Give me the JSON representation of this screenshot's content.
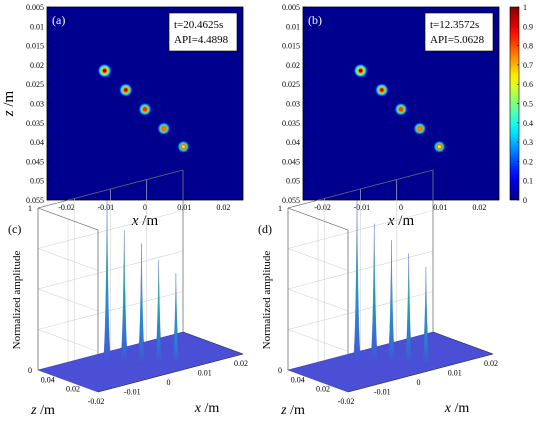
{
  "chart_data": [
    {
      "type": "heatmap",
      "panel_label": "(a)",
      "info_lines": [
        "t=20.4625s",
        "API=4.4898"
      ],
      "xlabel": "x /m",
      "ylabel": "z /m",
      "xlim": [
        -0.025,
        0.025
      ],
      "ylim": [
        0.005,
        0.055
      ],
      "y_reversed": true,
      "x_ticks": [
        -0.02,
        -0.01,
        0,
        0.01,
        0.02
      ],
      "x_tick_labels": [
        "-0.02",
        "-0.01",
        "0",
        "0.01",
        "0.02"
      ],
      "y_ticks": [
        0.005,
        0.01,
        0.015,
        0.02,
        0.025,
        0.03,
        0.035,
        0.04,
        0.045,
        0.05,
        0.055
      ],
      "y_tick_labels": [
        "0.005",
        "0.01",
        "0.015",
        "0.02",
        "0.025",
        "0.03",
        "0.035",
        "0.04",
        "0.045",
        "0.05",
        "0.055"
      ],
      "foci": [
        {
          "x": -0.0103,
          "z": 0.0215,
          "amplitude": 1.0
        },
        {
          "x": -0.0049,
          "z": 0.0265,
          "amplitude": 0.87
        },
        {
          "x": 0.0,
          "z": 0.0315,
          "amplitude": 0.78
        },
        {
          "x": 0.0048,
          "z": 0.0365,
          "amplitude": 0.7
        },
        {
          "x": 0.0098,
          "z": 0.0412,
          "amplitude": 0.6
        }
      ]
    },
    {
      "type": "heatmap",
      "panel_label": "(b)",
      "info_lines": [
        "t=12.3572s",
        "API=5.0628"
      ],
      "xlabel": "x /m",
      "ylabel": "",
      "xlim": [
        -0.025,
        0.025
      ],
      "ylim": [
        0.005,
        0.055
      ],
      "y_reversed": true,
      "x_ticks": [
        -0.02,
        -0.01,
        0,
        0.01,
        0.02
      ],
      "x_tick_labels": [
        "-0.02",
        "-0.01",
        "0",
        "0.01",
        "0.02"
      ],
      "y_ticks": [
        0.005,
        0.01,
        0.015,
        0.02,
        0.025,
        0.03,
        0.035,
        0.04,
        0.045,
        0.05,
        0.055
      ],
      "y_tick_labels": [
        "0.005",
        "0.01",
        "0.015",
        "0.02",
        "0.025",
        "0.03",
        "0.035",
        "0.04",
        "0.045",
        "0.05",
        "0.055"
      ],
      "foci": [
        {
          "x": -0.0103,
          "z": 0.0215,
          "amplitude": 1.0
        },
        {
          "x": -0.0049,
          "z": 0.0265,
          "amplitude": 0.86
        },
        {
          "x": 0.0,
          "z": 0.0315,
          "amplitude": 0.76
        },
        {
          "x": 0.0048,
          "z": 0.0365,
          "amplitude": 0.68
        },
        {
          "x": 0.0098,
          "z": 0.0412,
          "amplitude": 0.58
        }
      ]
    },
    {
      "type": "surface",
      "panel_label": "(c)",
      "xlabel": "x /m",
      "ylabel": "z /m",
      "zlabel": "Normalized amplitude",
      "x_tick_labels": [
        "-0.02",
        "-0.01",
        "0",
        "0.01",
        "0.02"
      ],
      "y_tick_labels": [
        "0.04",
        "0.02"
      ],
      "z_tick_labels": [
        "0",
        "1"
      ],
      "zlim": [
        0,
        1
      ],
      "peaks": [
        1.0,
        0.82,
        0.74,
        0.64,
        0.56
      ]
    },
    {
      "type": "surface",
      "panel_label": "(d)",
      "xlabel": "x /m",
      "ylabel": "z /m",
      "zlabel": "Normalized amplitude",
      "x_tick_labels": [
        "-0.02",
        "-0.01",
        "0",
        "0.01",
        "0.02"
      ],
      "y_tick_labels": [
        "0.04",
        "0.02"
      ],
      "z_tick_labels": [
        "0",
        "1"
      ],
      "zlim": [
        0,
        1
      ],
      "peaks": [
        1.0,
        0.86,
        0.76,
        0.68,
        0.6
      ]
    }
  ],
  "colorbar": {
    "colormap": "jet",
    "range": [
      0,
      1
    ],
    "ticks": [
      0,
      0.1,
      0.2,
      0.3,
      0.4,
      0.5,
      0.6,
      0.7,
      0.8,
      0.9,
      1
    ],
    "tick_labels": [
      "0",
      "0.1",
      "0.2",
      "0.3",
      "0.4",
      "0.5",
      "0.6",
      "0.7",
      "0.8",
      "0.9",
      "1"
    ]
  },
  "colors": {
    "background": "#00008f",
    "surface_base": "#4a4fd6",
    "frame": "#000000"
  }
}
